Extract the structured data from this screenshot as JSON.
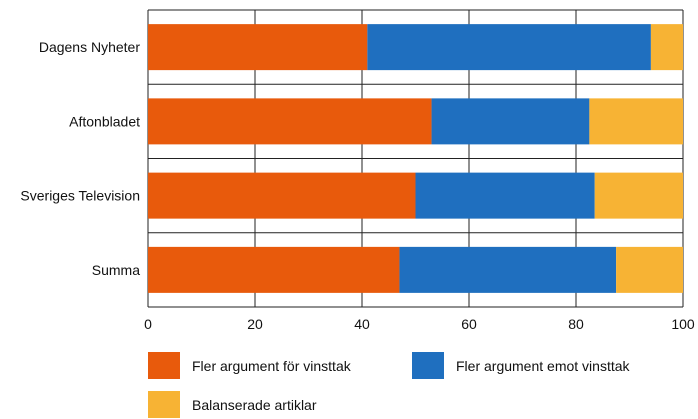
{
  "chart_data": {
    "type": "bar",
    "orientation": "horizontal",
    "stacked": true,
    "categories": [
      "Dagens Nyheter",
      "Aftonbladet",
      "Sveriges Television",
      "Summa"
    ],
    "series": [
      {
        "name": "Fler argument för vinsttak",
        "color": "#e85a0c",
        "values": [
          41,
          53,
          50,
          47
        ]
      },
      {
        "name": "Fler argument emot vinsttak",
        "color": "#1f6fbf",
        "values": [
          53,
          29.5,
          33.5,
          40.5
        ]
      },
      {
        "name": "Balanserade artiklar",
        "color": "#f7b334",
        "values": [
          6,
          17.5,
          16.5,
          12.5
        ]
      }
    ],
    "xlim": [
      0,
      100
    ],
    "xticks": [
      "0",
      "20",
      "40",
      "60",
      "80",
      "100"
    ],
    "grid": true,
    "legend": "bottom"
  }
}
